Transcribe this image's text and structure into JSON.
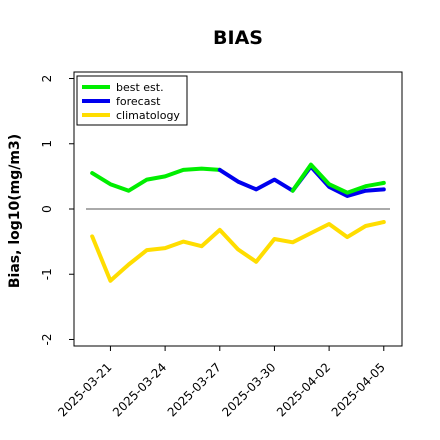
{
  "chart_data": {
    "type": "line",
    "title": "BIAS",
    "xlabel": "",
    "ylabel": "Bias, log10(mg/m3)",
    "ylim": [
      -2.1,
      2.1
    ],
    "yticks": [
      2,
      1,
      0,
      -1,
      -2
    ],
    "xlim": [
      "2025-03-19",
      "2025-04-06"
    ],
    "xticks": [
      "2025-03-21",
      "2025-03-24",
      "2025-03-27",
      "2025-03-30",
      "2025-04-02",
      "2025-04-05"
    ],
    "highlight_tick": "2025-03-27",
    "zero_line": true,
    "grid": false,
    "legend": "top-left",
    "series": [
      {
        "name": "best est.",
        "color": "#00ee00",
        "x": [
          "2025-03-20",
          "2025-03-21",
          "2025-03-22",
          "2025-03-23",
          "2025-03-24",
          "2025-03-25",
          "2025-03-26",
          "2025-03-27"
        ],
        "y": [
          0.55,
          0.38,
          0.28,
          0.45,
          0.5,
          0.6,
          0.62,
          0.6
        ]
      },
      {
        "name": "forecast",
        "color": "#0000ee",
        "x": [
          "2025-03-27",
          "2025-03-28",
          "2025-03-29",
          "2025-03-30",
          "2025-03-31",
          "2025-04-01",
          "2025-04-02",
          "2025-04-03",
          "2025-04-04",
          "2025-04-05"
        ],
        "y": [
          0.6,
          0.42,
          0.3,
          0.45,
          0.28,
          0.65,
          0.34,
          0.2,
          0.28,
          0.3
        ]
      },
      {
        "name": "best est.",
        "color": "#00ee00",
        "x": [
          "2025-03-31",
          "2025-04-01",
          "2025-04-02",
          "2025-04-03",
          "2025-04-04",
          "2025-04-05"
        ],
        "y": [
          0.28,
          0.68,
          0.38,
          0.25,
          0.35,
          0.4
        ]
      },
      {
        "name": "climatology",
        "color": "#ffdd00",
        "x": [
          "2025-03-20",
          "2025-03-21",
          "2025-03-22",
          "2025-03-23",
          "2025-03-24",
          "2025-03-25",
          "2025-03-26",
          "2025-03-27",
          "2025-03-28",
          "2025-03-29",
          "2025-03-30",
          "2025-03-31",
          "2025-04-01",
          "2025-04-02",
          "2025-04-03",
          "2025-04-04",
          "2025-04-05"
        ],
        "y": [
          -0.42,
          -1.1,
          -0.85,
          -0.63,
          -0.6,
          -0.5,
          -0.57,
          -0.32,
          -0.62,
          -0.81,
          -0.46,
          -0.51,
          -0.37,
          -0.23,
          -0.43,
          -0.26,
          -0.2
        ]
      }
    ],
    "legend_entries": [
      {
        "label": "best est.",
        "color": "#00ee00"
      },
      {
        "label": "forecast",
        "color": "#0000ee"
      },
      {
        "label": "climatology",
        "color": "#ffdd00"
      }
    ]
  }
}
